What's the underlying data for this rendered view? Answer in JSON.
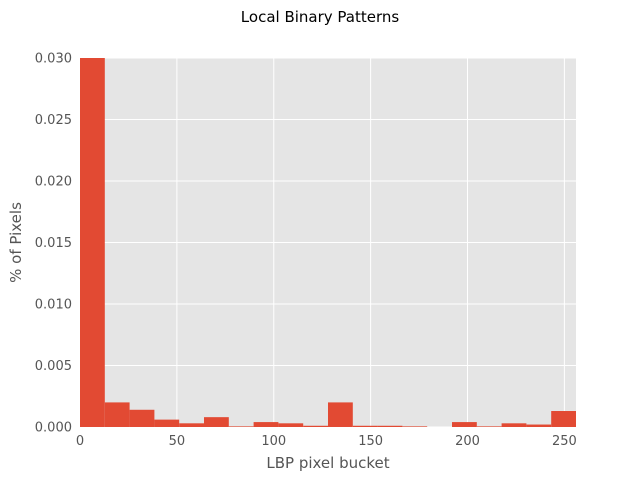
{
  "chart_data": {
    "type": "bar",
    "title": "Local Binary Patterns",
    "xlabel": "LBP pixel bucket",
    "ylabel": "% of Pixels",
    "xlim": [
      0,
      256
    ],
    "ylim": [
      0,
      0.03
    ],
    "grid": true,
    "bin_edges": [
      0,
      12.8,
      25.6,
      38.4,
      51.2,
      64,
      76.8,
      89.6,
      102.4,
      115.2,
      128,
      140.8,
      153.6,
      166.4,
      179.2,
      192,
      204.8,
      217.6,
      230.4,
      243.2,
      256
    ],
    "values": [
      0.03,
      0.002,
      0.0014,
      0.0006,
      0.0003,
      0.0008,
      5e-05,
      0.0004,
      0.0003,
      0.0001,
      0.002,
      0.0001,
      0.0001,
      5e-05,
      0.0,
      0.0004,
      5e-05,
      0.0003,
      0.0002,
      0.0013
    ],
    "x_ticks": [
      0,
      50,
      100,
      150,
      200,
      250
    ],
    "x_tick_labels": [
      "0",
      "50",
      "100",
      "150",
      "200",
      "250"
    ],
    "y_ticks": [
      0,
      0.005,
      0.01,
      0.015,
      0.02,
      0.025,
      0.03
    ],
    "y_tick_labels": [
      "0.000",
      "0.005",
      "0.010",
      "0.015",
      "0.020",
      "0.025",
      "0.030"
    ],
    "colors": {
      "bar": "#E24A33",
      "plot_background": "#E5E5E5",
      "grid": "#FFFFFF",
      "tick_text": "#555555",
      "title_text": "#000000"
    }
  }
}
